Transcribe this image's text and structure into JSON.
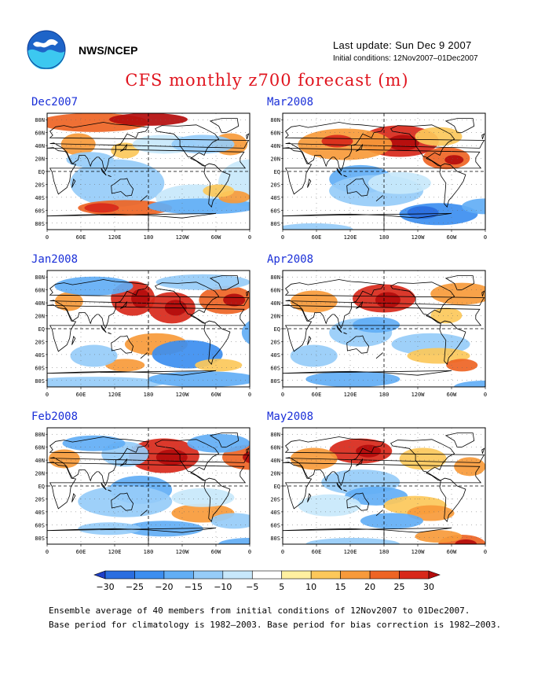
{
  "header": {
    "agency": "NWS/NCEP",
    "last_update": "Last update: Sun Dec 9 2007",
    "initial_conditions": "Initial conditions: 12Nov2007–01Dec2007",
    "title": "CFS monthly z700 forecast (m)"
  },
  "panels": [
    {
      "id": "dec2007",
      "title": "Dec2007"
    },
    {
      "id": "jan2008",
      "title": "Jan2008"
    },
    {
      "id": "feb2008",
      "title": "Feb2008"
    },
    {
      "id": "mar2008",
      "title": "Mar2008"
    },
    {
      "id": "apr2008",
      "title": "Apr2008"
    },
    {
      "id": "may2008",
      "title": "May2008"
    }
  ],
  "axes": {
    "lat_labels": [
      "80N",
      "60N",
      "40N",
      "20N",
      "EQ",
      "20S",
      "40S",
      "60S",
      "80S"
    ],
    "lon_labels": [
      "0",
      "60E",
      "120E",
      "180",
      "120W",
      "60W",
      "0"
    ]
  },
  "colorbar": {
    "labels": [
      "−30",
      "−25",
      "−20",
      "−15",
      "−10",
      "−5",
      "5",
      "10",
      "15",
      "20",
      "25",
      "30"
    ],
    "colors": [
      "#1e3fc8",
      "#2a6ee0",
      "#3c8ef0",
      "#62aef5",
      "#96ccf8",
      "#c8e8fb",
      "#ffffff",
      "#fff0a0",
      "#fcc85a",
      "#f79a3a",
      "#ee6424",
      "#d8281a",
      "#b40c0c"
    ]
  },
  "footer": {
    "line1": "Ensemble average of 40 members from initial conditions of 12Nov2007 to 01Dec2007.",
    "line2": "Base period for climatology is 1982–2003. Base period for bias correction is 1982–2003."
  }
}
